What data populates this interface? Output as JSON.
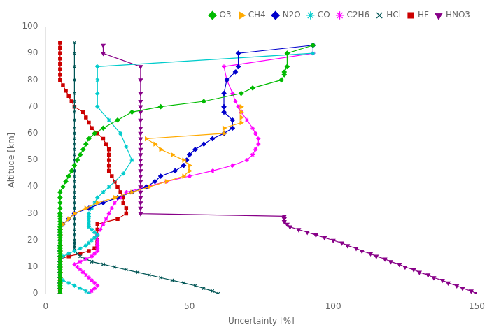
{
  "chart_data": {
    "type": "line",
    "xlabel": "Uncertainty [%]",
    "ylabel": "Altitude [km]",
    "xlim": [
      0,
      150
    ],
    "ylim": [
      0,
      100
    ],
    "xticks": [
      0,
      50,
      100,
      150
    ],
    "yticks": [
      0,
      10,
      20,
      30,
      40,
      50,
      60,
      70,
      80,
      90,
      100
    ],
    "grid": false,
    "legend": "upper right",
    "series": [
      {
        "name": "O3",
        "color": "#00bb00",
        "marker": "diamond",
        "x": [
          5,
          5,
          5,
          5,
          5,
          5,
          5,
          5,
          5,
          5,
          5,
          5,
          5,
          5,
          5,
          5,
          5,
          5,
          5,
          5,
          5,
          5,
          5,
          5,
          5,
          5,
          5,
          5,
          5,
          5,
          5,
          5,
          5,
          5,
          5,
          6,
          7,
          8,
          9,
          10,
          11,
          12,
          13,
          14,
          15,
          17,
          20,
          25,
          30,
          40,
          55,
          68,
          72,
          82,
          83,
          83,
          84,
          84,
          93
        ],
        "values": [
          0,
          1,
          2,
          3,
          4,
          5,
          6,
          7,
          8,
          9,
          10,
          11,
          12,
          13,
          14,
          15,
          16,
          17,
          18,
          19,
          20,
          21,
          22,
          23,
          24,
          25,
          26,
          27,
          28,
          29,
          30,
          32,
          34,
          36,
          38,
          40,
          42,
          44,
          46,
          48,
          50,
          52,
          54,
          56,
          58,
          60,
          62,
          65,
          68,
          70,
          72,
          75,
          77,
          80,
          82,
          83,
          85,
          90,
          93
        ]
      },
      {
        "name": "CH4",
        "color": "#ffaa00",
        "marker": "triangle_right",
        "x": [
          5,
          5,
          5,
          5,
          5,
          5,
          5,
          5,
          5,
          5,
          5,
          5,
          5,
          6,
          8,
          10,
          14,
          18,
          24,
          30,
          36,
          42,
          48,
          50,
          50,
          48,
          44,
          40,
          38,
          35,
          62,
          62,
          68,
          68,
          68,
          68
        ],
        "values": [
          0,
          2,
          4,
          6,
          8,
          10,
          12,
          14,
          16,
          18,
          20,
          22,
          24,
          26,
          28,
          30,
          32,
          34,
          36,
          38,
          40,
          42,
          44,
          46,
          48,
          50,
          52,
          54,
          56,
          58,
          60,
          62,
          64,
          66,
          68,
          70
        ]
      },
      {
        "name": "N2O",
        "color": "#0000cc",
        "marker": "diamond",
        "x": [
          5,
          5,
          5,
          5,
          5,
          5,
          5,
          5,
          5,
          5,
          5,
          5,
          5,
          6,
          8,
          10,
          15,
          20,
          25,
          30,
          35,
          38,
          40,
          45,
          48,
          49,
          50,
          52,
          55,
          58,
          62,
          65,
          65,
          62,
          62,
          62,
          63,
          66,
          67,
          67,
          93
        ],
        "values": [
          0,
          2,
          4,
          6,
          8,
          10,
          12,
          14,
          16,
          18,
          20,
          22,
          24,
          26,
          28,
          30,
          32,
          34,
          36,
          38,
          40,
          42,
          44,
          46,
          48,
          50,
          52,
          54,
          56,
          58,
          60,
          62,
          65,
          68,
          70,
          75,
          80,
          83,
          85,
          90,
          93
        ]
      },
      {
        "name": "CO",
        "color": "#00cccc",
        "marker": "star",
        "x": [
          15,
          14,
          12,
          10,
          8,
          6,
          5,
          5,
          5,
          5,
          5,
          5,
          5,
          5,
          6,
          8,
          10,
          12,
          14,
          15,
          16,
          17,
          18,
          17,
          16,
          15,
          15,
          15,
          15,
          15,
          15,
          16,
          17,
          18,
          20,
          22,
          27,
          30,
          28,
          26,
          22,
          18,
          18,
          18,
          18,
          93,
          93
        ],
        "values": [
          0,
          1,
          2,
          3,
          4,
          5,
          6,
          7,
          8,
          9,
          10,
          11,
          12,
          13,
          14,
          15,
          16,
          17,
          18,
          19,
          20,
          21,
          22,
          23,
          24,
          25,
          26,
          27,
          28,
          29,
          30,
          32,
          34,
          36,
          38,
          40,
          45,
          50,
          55,
          60,
          65,
          70,
          75,
          80,
          85,
          90,
          93
        ]
      },
      {
        "name": "C2H6",
        "color": "#ff00ff",
        "marker": "star",
        "x": [
          15,
          16,
          17,
          18,
          17,
          16,
          15,
          14,
          13,
          12,
          11,
          10,
          12,
          14,
          16,
          17,
          18,
          18,
          18,
          18,
          18,
          18,
          19,
          20,
          21,
          22,
          23,
          24,
          26,
          28,
          35,
          42,
          50,
          58,
          65,
          70,
          72,
          73,
          74,
          74,
          73,
          72,
          70,
          68,
          67,
          66,
          65,
          63,
          62,
          93,
          93
        ],
        "values": [
          0,
          1,
          2,
          3,
          4,
          5,
          6,
          7,
          8,
          9,
          10,
          11,
          12,
          13,
          14,
          15,
          16,
          17,
          18,
          19,
          20,
          22,
          24,
          26,
          28,
          30,
          32,
          34,
          36,
          38,
          40,
          42,
          44,
          46,
          48,
          50,
          52,
          54,
          56,
          58,
          60,
          62,
          65,
          68,
          70,
          72,
          75,
          80,
          85,
          90,
          93
        ]
      },
      {
        "name": "HCl",
        "color": "#005555",
        "marker": "x",
        "x": [
          60,
          58,
          55,
          52,
          48,
          44,
          40,
          36,
          32,
          28,
          24,
          20,
          16,
          14,
          12,
          11,
          10,
          10,
          10,
          10,
          10,
          10,
          10,
          10,
          10,
          10,
          10,
          10,
          10,
          10,
          10,
          10,
          10,
          10,
          10,
          10,
          10,
          10,
          10,
          10,
          10,
          10,
          10,
          10,
          10,
          10,
          10,
          10,
          10,
          10,
          10
        ],
        "values": [
          0,
          1,
          2,
          3,
          4,
          5,
          6,
          7,
          8,
          9,
          10,
          11,
          12,
          13,
          14,
          15,
          16,
          17,
          18,
          19,
          20,
          22,
          24,
          26,
          28,
          30,
          32,
          34,
          36,
          38,
          40,
          42,
          44,
          46,
          48,
          50,
          52,
          54,
          56,
          58,
          60,
          62,
          65,
          68,
          70,
          72,
          75,
          80,
          85,
          90,
          94
        ]
      },
      {
        "name": "HF",
        "color": "#cc0000",
        "marker": "square",
        "x": [
          5,
          5,
          5,
          5,
          5,
          5,
          5,
          5,
          5,
          5,
          5,
          5,
          5,
          5,
          8,
          12,
          15,
          17,
          18,
          18,
          18,
          18,
          18,
          18,
          25,
          28,
          28,
          27,
          27,
          26,
          25,
          24,
          23,
          22,
          22,
          22,
          22,
          22,
          21,
          20,
          18,
          16,
          15,
          14,
          13,
          10,
          9,
          8,
          7,
          6,
          5,
          5,
          5,
          5,
          5,
          5,
          5,
          5
        ],
        "values": [
          0,
          1,
          2,
          3,
          4,
          5,
          6,
          7,
          8,
          9,
          10,
          11,
          12,
          13,
          14,
          15,
          16,
          17,
          18,
          19,
          20,
          22,
          24,
          26,
          28,
          30,
          32,
          34,
          36,
          38,
          40,
          42,
          44,
          46,
          48,
          50,
          52,
          54,
          56,
          58,
          60,
          62,
          64,
          66,
          68,
          70,
          72,
          74,
          76,
          78,
          80,
          82,
          84,
          86,
          88,
          90,
          92,
          94
        ]
      },
      {
        "name": "HNO3",
        "color": "#880088",
        "marker": "triangle_down",
        "x": [
          150,
          148,
          145,
          143,
          140,
          138,
          135,
          133,
          130,
          128,
          125,
          123,
          120,
          118,
          115,
          113,
          110,
          108,
          105,
          103,
          100,
          97,
          94,
          91,
          88,
          85,
          84,
          83,
          83,
          83,
          33,
          33,
          33,
          33,
          33,
          33,
          33,
          33,
          33,
          33,
          33,
          33,
          33,
          33,
          33,
          33,
          33,
          33,
          33,
          33,
          33,
          33,
          33,
          33,
          20,
          20
        ],
        "values": [
          0,
          1,
          2,
          3,
          4,
          5,
          6,
          7,
          8,
          9,
          10,
          11,
          12,
          13,
          14,
          15,
          16,
          17,
          18,
          19,
          20,
          21,
          22,
          23,
          24,
          25,
          26,
          27,
          28,
          29,
          30,
          32,
          34,
          36,
          38,
          40,
          42,
          44,
          46,
          48,
          50,
          52,
          54,
          56,
          58,
          60,
          62,
          65,
          68,
          70,
          72,
          75,
          80,
          85,
          90,
          93
        ]
      }
    ]
  }
}
